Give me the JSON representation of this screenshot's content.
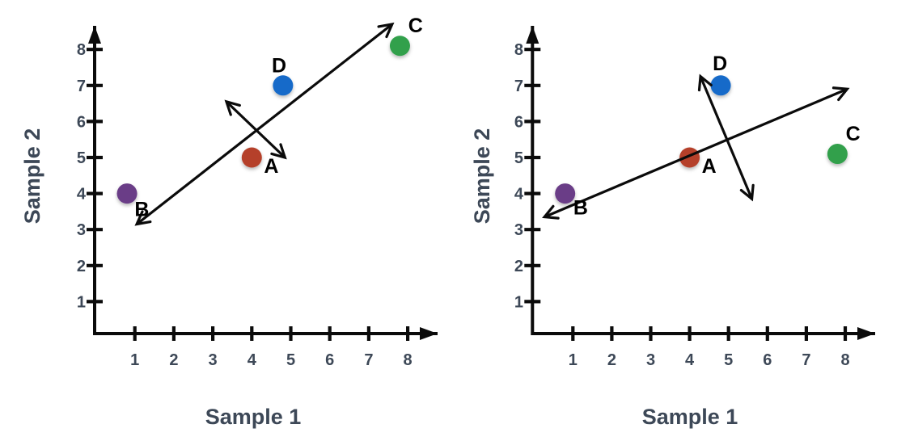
{
  "figure": {
    "background": "#ffffff",
    "axis_color": "#0b0b0b",
    "tick_text_color": "#3d4857",
    "point_label_color": "#000000"
  },
  "chart_data": [
    {
      "type": "scatter",
      "panel": "left",
      "title": "",
      "xlabel": "Sample 1",
      "ylabel": "Sample 2",
      "xlim": [
        0,
        8.9
      ],
      "ylim": [
        0,
        8.9
      ],
      "grid": false,
      "x_ticks": [
        "1",
        "2",
        "3",
        "4",
        "5",
        "6",
        "7",
        "8"
      ],
      "y_ticks": [
        "1",
        "2",
        "3",
        "4",
        "5",
        "6",
        "7",
        "8"
      ],
      "points": [
        {
          "label": "A",
          "x": 4.0,
          "y": 5.0,
          "color": "#b5412b",
          "label_pos": [
            4.5,
            4.75
          ]
        },
        {
          "label": "B",
          "x": 0.8,
          "y": 4.0,
          "color": "#6b3c87",
          "label_pos": [
            1.18,
            3.55
          ]
        },
        {
          "label": "C",
          "x": 7.8,
          "y": 8.1,
          "color": "#31a04c",
          "label_pos": [
            8.2,
            8.65
          ]
        },
        {
          "label": "D",
          "x": 4.8,
          "y": 7.0,
          "color": "#156bc9",
          "label_pos": [
            4.7,
            7.55
          ]
        }
      ],
      "arrows": [
        {
          "name": "long-diagonal-arrow",
          "x1": 1.05,
          "y1": 3.15,
          "x2": 7.6,
          "y2": 8.7
        },
        {
          "name": "short-perpendicular-arrow",
          "x1": 3.35,
          "y1": 6.55,
          "x2": 4.85,
          "y2": 5.0
        }
      ]
    },
    {
      "type": "scatter",
      "panel": "right",
      "title": "",
      "xlabel": "Sample 1",
      "ylabel": "Sample 2",
      "xlim": [
        0,
        8.9
      ],
      "ylim": [
        0,
        8.9
      ],
      "grid": false,
      "x_ticks": [
        "1",
        "2",
        "3",
        "4",
        "5",
        "6",
        "7",
        "8"
      ],
      "y_ticks": [
        "1",
        "2",
        "3",
        "4",
        "5",
        "6",
        "7",
        "8"
      ],
      "points": [
        {
          "label": "A",
          "x": 4.0,
          "y": 5.0,
          "color": "#b5412b",
          "label_pos": [
            4.5,
            4.75
          ]
        },
        {
          "label": "B",
          "x": 0.8,
          "y": 4.0,
          "color": "#6b3c87",
          "label_pos": [
            1.2,
            3.6
          ]
        },
        {
          "label": "C",
          "x": 7.8,
          "y": 5.1,
          "color": "#31a04c",
          "label_pos": [
            8.2,
            5.65
          ]
        },
        {
          "label": "D",
          "x": 4.8,
          "y": 7.0,
          "color": "#156bc9",
          "label_pos": [
            4.78,
            7.6
          ]
        }
      ],
      "arrows": [
        {
          "name": "long-diagonal-arrow",
          "x1": 0.27,
          "y1": 3.35,
          "x2": 8.05,
          "y2": 6.9
        },
        {
          "name": "short-perpendicular-arrow",
          "x1": 4.28,
          "y1": 7.25,
          "x2": 5.6,
          "y2": 3.85
        }
      ]
    }
  ]
}
